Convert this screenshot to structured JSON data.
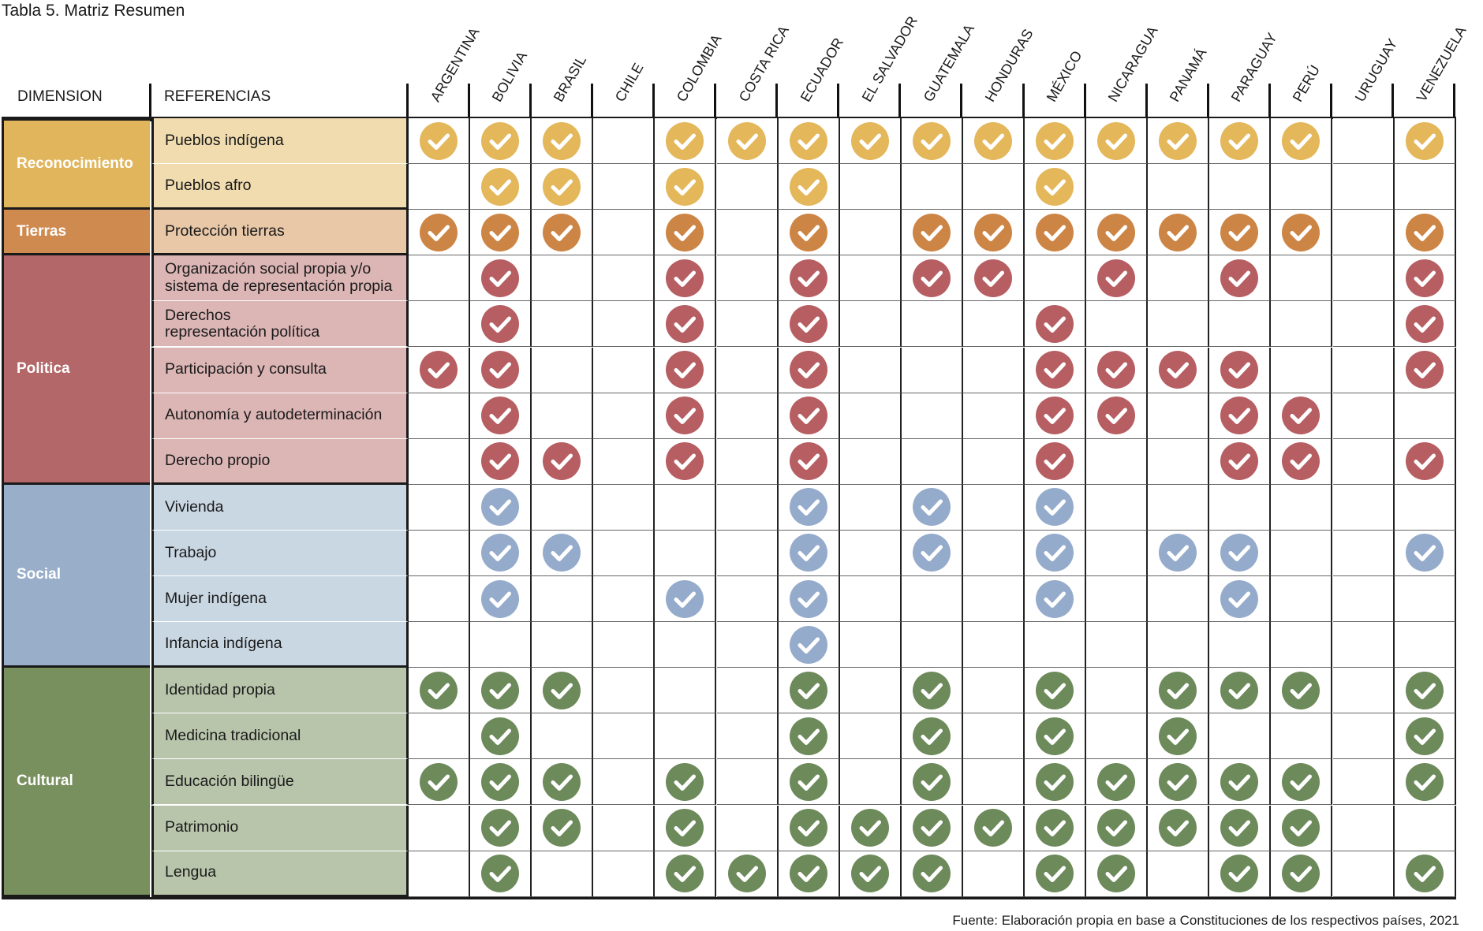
{
  "caption": "Tabla 5. Matriz Resumen",
  "source": "Fuente: Elaboración propia en base a Constituciones de los respectivos países, 2021",
  "headers": {
    "dimension": "DIMENSION",
    "referencias": "REFERENCIAS"
  },
  "countries": [
    "ARGENTINA",
    "BOLIVIA",
    "BRASIL",
    "CHILE",
    "COLOMBIA",
    "COSTA RICA",
    "ECUADOR",
    "EL SALVADOR",
    "GUATEMALA",
    "HONDURAS",
    "MÉXICO",
    "NICARAGUA",
    "PANAMÁ",
    "PARAGUAY",
    "PERÚ",
    "URUGUAY",
    "VENEZUELA"
  ],
  "dimensions": [
    {
      "name": "Reconocimiento",
      "dark": "#e0b55b",
      "light": "#f0dcae",
      "check": "#e3b75a",
      "rows": [
        {
          "label": "Pueblos indígena",
          "marks": [
            1,
            1,
            1,
            0,
            1,
            1,
            1,
            1,
            1,
            1,
            1,
            1,
            1,
            1,
            1,
            0,
            1
          ]
        },
        {
          "label": "Pueblos afro",
          "marks": [
            0,
            1,
            1,
            0,
            1,
            0,
            1,
            0,
            0,
            0,
            1,
            0,
            0,
            0,
            0,
            0,
            0
          ]
        }
      ]
    },
    {
      "name": "Tierras",
      "dark": "#cf8a4f",
      "light": "#e9c8a8",
      "check": "#cd8545",
      "rows": [
        {
          "label": "Protección tierras",
          "marks": [
            1,
            1,
            1,
            0,
            1,
            0,
            1,
            0,
            1,
            1,
            1,
            1,
            1,
            1,
            1,
            0,
            1
          ]
        }
      ]
    },
    {
      "name": "Politica",
      "dark": "#b36769",
      "light": "#dcb5b5",
      "check": "#b65e62",
      "rows": [
        {
          "label": "Organización social propia y/o\nsistema de representación propia",
          "marks": [
            0,
            1,
            0,
            0,
            1,
            0,
            1,
            0,
            1,
            1,
            0,
            1,
            0,
            1,
            0,
            0,
            1
          ]
        },
        {
          "label": "Derechos\nrepresentación política",
          "marks": [
            0,
            1,
            0,
            0,
            1,
            0,
            1,
            0,
            0,
            0,
            1,
            0,
            0,
            0,
            0,
            0,
            1
          ]
        },
        {
          "label": "Participación y consulta",
          "marks": [
            1,
            1,
            0,
            0,
            1,
            0,
            1,
            0,
            0,
            0,
            1,
            1,
            1,
            1,
            0,
            0,
            1
          ]
        },
        {
          "label": "Autonomía y autodeterminación",
          "marks": [
            0,
            1,
            0,
            0,
            1,
            0,
            1,
            0,
            0,
            0,
            1,
            1,
            0,
            1,
            1,
            0,
            0
          ]
        },
        {
          "label": "Derecho propio",
          "marks": [
            0,
            1,
            1,
            0,
            1,
            0,
            1,
            0,
            0,
            0,
            1,
            0,
            0,
            1,
            1,
            0,
            1
          ]
        }
      ]
    },
    {
      "name": "Social",
      "dark": "#99aec9",
      "light": "#c9d7e3",
      "check": "#95abcb",
      "rows": [
        {
          "label": "Vivienda",
          "marks": [
            0,
            1,
            0,
            0,
            0,
            0,
            1,
            0,
            1,
            0,
            1,
            0,
            0,
            0,
            0,
            0,
            0
          ]
        },
        {
          "label": "Trabajo",
          "marks": [
            0,
            1,
            1,
            0,
            0,
            0,
            1,
            0,
            1,
            0,
            1,
            0,
            1,
            1,
            0,
            0,
            1
          ]
        },
        {
          "label": "Mujer indígena",
          "marks": [
            0,
            1,
            0,
            0,
            1,
            0,
            1,
            0,
            0,
            0,
            1,
            0,
            0,
            1,
            0,
            0,
            0
          ]
        },
        {
          "label": "Infancia indígena",
          "marks": [
            0,
            0,
            0,
            0,
            0,
            0,
            1,
            0,
            0,
            0,
            0,
            0,
            0,
            0,
            0,
            0,
            0
          ]
        }
      ]
    },
    {
      "name": "Cultural",
      "dark": "#788f5e",
      "light": "#b8c5ab",
      "check": "#6d8a5b",
      "rows": [
        {
          "label": "Identidad propia",
          "marks": [
            1,
            1,
            1,
            0,
            0,
            0,
            1,
            0,
            1,
            0,
            1,
            0,
            1,
            1,
            1,
            0,
            1
          ]
        },
        {
          "label": "Medicina tradicional",
          "marks": [
            0,
            1,
            0,
            0,
            0,
            0,
            1,
            0,
            1,
            0,
            1,
            0,
            1,
            0,
            0,
            0,
            1
          ]
        },
        {
          "label": "Educación bilingüe",
          "marks": [
            1,
            1,
            1,
            0,
            1,
            0,
            1,
            0,
            1,
            0,
            1,
            1,
            1,
            1,
            1,
            0,
            1
          ]
        },
        {
          "label": "Patrimonio",
          "marks": [
            0,
            1,
            1,
            0,
            1,
            0,
            1,
            1,
            1,
            1,
            1,
            1,
            1,
            1,
            1,
            0,
            0
          ]
        },
        {
          "label": "Lengua",
          "marks": [
            0,
            1,
            0,
            0,
            1,
            1,
            1,
            1,
            1,
            0,
            1,
            1,
            0,
            1,
            1,
            0,
            1
          ]
        }
      ]
    }
  ],
  "icon": "check-circle-icon"
}
